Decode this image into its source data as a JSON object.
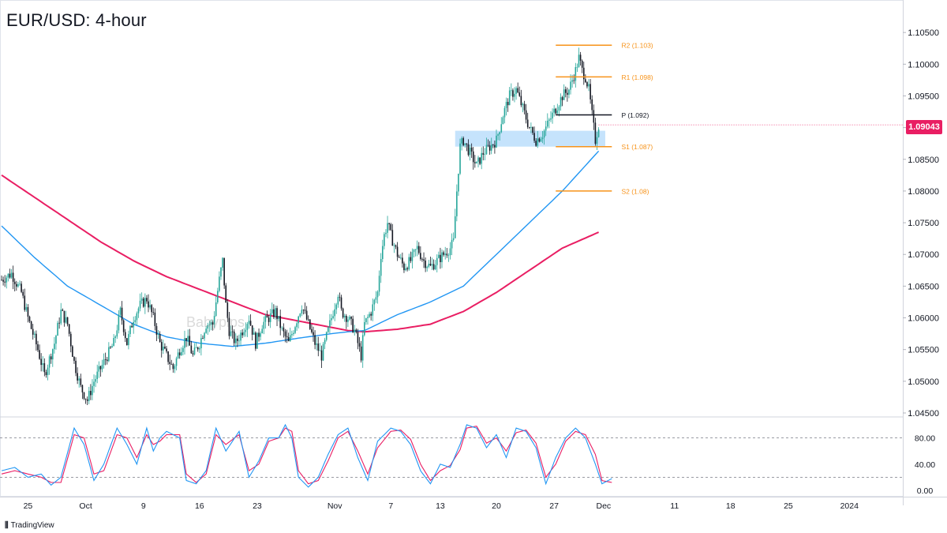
{
  "chart_data": [
    {
      "type": "candlestick",
      "title": "EUR/USD: 4-hour",
      "watermark": "Babypips",
      "y_ticks": [
        1.045,
        1.05,
        1.055,
        1.06,
        1.065,
        1.07,
        1.075,
        1.08,
        1.085,
        1.09,
        1.095,
        1.1,
        1.105
      ],
      "y_tick_labels": [
        "1.04500",
        "1.05000",
        "1.05500",
        "1.06000",
        "1.06500",
        "1.07000",
        "1.07500",
        "1.08000",
        "1.08500",
        "1.09000",
        "1.09500",
        "1.10000",
        "1.10500"
      ],
      "ylim": [
        1.0445,
        1.1095
      ],
      "x_tick_labels": [
        "25",
        "Oct",
        "9",
        "16",
        "23",
        "Nov",
        "7",
        "13",
        "20",
        "27",
        "Dec",
        "11",
        "18",
        "25",
        "2024"
      ],
      "bars": 180,
      "current_price": 1.09043,
      "current_price_label": "1.09043",
      "close_path": [
        [
          0,
          1.066
        ],
        [
          6,
          1.067
        ],
        [
          12,
          1.064
        ],
        [
          16,
          1.06
        ],
        [
          22,
          1.055
        ],
        [
          26,
          1.051
        ],
        [
          32,
          1.056
        ],
        [
          36,
          1.061
        ],
        [
          40,
          1.059
        ],
        [
          44,
          1.053
        ],
        [
          48,
          1.049
        ],
        [
          52,
          1.047
        ],
        [
          56,
          1.05
        ],
        [
          60,
          1.052
        ],
        [
          64,
          1.054
        ],
        [
          68,
          1.056
        ],
        [
          72,
          1.061
        ],
        [
          76,
          1.056
        ],
        [
          80,
          1.06
        ],
        [
          84,
          1.062
        ],
        [
          88,
          1.063
        ],
        [
          92,
          1.06
        ],
        [
          96,
          1.056
        ],
        [
          100,
          1.054
        ],
        [
          104,
          1.052
        ],
        [
          108,
          1.055
        ],
        [
          112,
          1.057
        ],
        [
          116,
          1.054
        ],
        [
          120,
          1.056
        ],
        [
          124,
          1.059
        ],
        [
          128,
          1.059
        ],
        [
          132,
          1.066
        ],
        [
          134,
          1.069
        ],
        [
          136,
          1.062
        ],
        [
          138,
          1.058
        ],
        [
          142,
          1.056
        ],
        [
          146,
          1.058
        ],
        [
          150,
          1.06
        ],
        [
          154,
          1.056
        ],
        [
          158,
          1.059
        ],
        [
          162,
          1.06
        ],
        [
          166,
          1.061
        ],
        [
          170,
          1.058
        ],
        [
          174,
          1.056
        ],
        [
          178,
          1.059
        ],
        [
          182,
          1.062
        ],
        [
          186,
          1.059
        ],
        [
          190,
          1.056
        ],
        [
          194,
          1.054
        ],
        [
          198,
          1.058
        ],
        [
          202,
          1.062
        ],
        [
          204,
          1.064
        ],
        [
          206,
          1.061
        ],
        [
          210,
          1.06
        ],
        [
          214,
          1.058
        ],
        [
          216,
          1.056
        ],
        [
          218,
          1.054
        ],
        [
          220,
          1.059
        ],
        [
          224,
          1.061
        ],
        [
          228,
          1.064
        ],
        [
          230,
          1.07
        ],
        [
          232,
          1.073
        ],
        [
          234,
          1.075
        ],
        [
          236,
          1.073
        ],
        [
          240,
          1.07
        ],
        [
          244,
          1.068
        ],
        [
          248,
          1.069
        ],
        [
          252,
          1.071
        ],
        [
          256,
          1.069
        ],
        [
          260,
          1.068
        ],
        [
          264,
          1.069
        ],
        [
          268,
          1.07
        ],
        [
          272,
          1.071
        ],
        [
          274,
          1.072
        ],
        [
          276,
          1.08
        ],
        [
          278,
          1.087
        ],
        [
          280,
          1.088
        ],
        [
          284,
          1.086
        ],
        [
          288,
          1.084
        ],
        [
          292,
          1.086
        ],
        [
          296,
          1.087
        ],
        [
          300,
          1.088
        ],
        [
          304,
          1.092
        ],
        [
          308,
          1.095
        ],
        [
          312,
          1.096
        ],
        [
          316,
          1.093
        ],
        [
          320,
          1.09
        ],
        [
          324,
          1.088
        ],
        [
          328,
          1.089
        ],
        [
          332,
          1.091
        ],
        [
          336,
          1.093
        ],
        [
          340,
          1.095
        ],
        [
          344,
          1.096
        ],
        [
          348,
          1.099
        ],
        [
          350,
          1.101
        ],
        [
          352,
          1.099
        ],
        [
          354,
          1.098
        ],
        [
          356,
          1.096
        ],
        [
          358,
          1.092
        ],
        [
          360,
          1.088
        ],
        [
          362,
          1.0904
        ]
      ],
      "ma_blue": [
        [
          0,
          1.0745
        ],
        [
          20,
          1.0695
        ],
        [
          40,
          1.065
        ],
        [
          60,
          1.062
        ],
        [
          80,
          1.059
        ],
        [
          100,
          1.057
        ],
        [
          120,
          1.056
        ],
        [
          140,
          1.0555
        ],
        [
          160,
          1.056
        ],
        [
          180,
          1.0568
        ],
        [
          200,
          1.0575
        ],
        [
          210,
          1.0578
        ],
        [
          220,
          1.058
        ],
        [
          240,
          1.0605
        ],
        [
          260,
          1.0625
        ],
        [
          280,
          1.065
        ],
        [
          300,
          1.07
        ],
        [
          320,
          1.075
        ],
        [
          340,
          1.08
        ],
        [
          362,
          1.0863
        ]
      ],
      "ma_pink": [
        [
          0,
          1.0825
        ],
        [
          20,
          1.079
        ],
        [
          40,
          1.0755
        ],
        [
          60,
          1.072
        ],
        [
          80,
          1.069
        ],
        [
          100,
          1.0665
        ],
        [
          120,
          1.0645
        ],
        [
          140,
          1.0625
        ],
        [
          160,
          1.0605
        ],
        [
          180,
          1.0595
        ],
        [
          200,
          1.0585
        ],
        [
          210,
          1.058
        ],
        [
          220,
          1.0578
        ],
        [
          240,
          1.0582
        ],
        [
          260,
          1.059
        ],
        [
          280,
          1.061
        ],
        [
          300,
          1.064
        ],
        [
          320,
          1.0675
        ],
        [
          340,
          1.071
        ],
        [
          362,
          1.0735
        ]
      ],
      "support_zone": {
        "from": 1.087,
        "to": 1.0895
      },
      "pivot_levels": [
        {
          "label": "R2 (1.103)",
          "value": 1.103,
          "color": "#f7931a"
        },
        {
          "label": "R1 (1.098)",
          "value": 1.098,
          "color": "#f7931a"
        },
        {
          "label": "P (1.092)",
          "value": 1.092,
          "color": "#131722"
        },
        {
          "label": "S1 (1.087)",
          "value": 1.087,
          "color": "#f7931a"
        },
        {
          "label": "S2 (1.08)",
          "value": 1.08,
          "color": "#f7931a"
        }
      ],
      "colors": {
        "up": "#26a69a",
        "down": "#131722",
        "ma_blue": "#2196f3",
        "ma_pink": "#e91e63",
        "zone": "#bbdefb",
        "badge": "#e91e63"
      }
    },
    {
      "type": "line",
      "name": "stochastic",
      "ylim": [
        0,
        100
      ],
      "y_ticks": [
        0,
        40,
        80
      ],
      "y_tick_labels": [
        "0.00",
        "40.00",
        "80.00"
      ],
      "reference_lines": [
        80,
        20
      ],
      "k_line": [
        [
          0,
          30
        ],
        [
          8,
          35
        ],
        [
          16,
          20
        ],
        [
          24,
          25
        ],
        [
          30,
          8
        ],
        [
          36,
          20
        ],
        [
          44,
          95
        ],
        [
          50,
          70
        ],
        [
          56,
          15
        ],
        [
          62,
          40
        ],
        [
          70,
          95
        ],
        [
          76,
          70
        ],
        [
          82,
          40
        ],
        [
          88,
          95
        ],
        [
          92,
          60
        ],
        [
          96,
          80
        ],
        [
          100,
          90
        ],
        [
          108,
          80
        ],
        [
          112,
          15
        ],
        [
          118,
          10
        ],
        [
          124,
          30
        ],
        [
          130,
          95
        ],
        [
          136,
          60
        ],
        [
          144,
          90
        ],
        [
          150,
          20
        ],
        [
          156,
          45
        ],
        [
          162,
          80
        ],
        [
          168,
          80
        ],
        [
          172,
          100
        ],
        [
          176,
          80
        ],
        [
          180,
          20
        ],
        [
          186,
          5
        ],
        [
          192,
          20
        ],
        [
          198,
          55
        ],
        [
          204,
          85
        ],
        [
          210,
          95
        ],
        [
          216,
          50
        ],
        [
          222,
          15
        ],
        [
          228,
          75
        ],
        [
          236,
          95
        ],
        [
          242,
          90
        ],
        [
          248,
          70
        ],
        [
          254,
          30
        ],
        [
          260,
          10
        ],
        [
          266,
          40
        ],
        [
          272,
          35
        ],
        [
          278,
          70
        ],
        [
          282,
          100
        ],
        [
          288,
          95
        ],
        [
          294,
          65
        ],
        [
          300,
          85
        ],
        [
          306,
          50
        ],
        [
          312,
          95
        ],
        [
          318,
          90
        ],
        [
          324,
          65
        ],
        [
          330,
          10
        ],
        [
          336,
          50
        ],
        [
          342,
          80
        ],
        [
          348,
          95
        ],
        [
          354,
          80
        ],
        [
          360,
          40
        ],
        [
          364,
          10
        ],
        [
          370,
          18
        ]
      ],
      "d_line": [
        [
          0,
          25
        ],
        [
          8,
          30
        ],
        [
          16,
          25
        ],
        [
          24,
          20
        ],
        [
          30,
          12
        ],
        [
          36,
          12
        ],
        [
          44,
          85
        ],
        [
          50,
          80
        ],
        [
          56,
          25
        ],
        [
          62,
          30
        ],
        [
          70,
          85
        ],
        [
          76,
          80
        ],
        [
          82,
          50
        ],
        [
          88,
          85
        ],
        [
          92,
          70
        ],
        [
          96,
          75
        ],
        [
          100,
          85
        ],
        [
          108,
          85
        ],
        [
          112,
          25
        ],
        [
          118,
          12
        ],
        [
          124,
          25
        ],
        [
          130,
          85
        ],
        [
          136,
          70
        ],
        [
          144,
          85
        ],
        [
          150,
          30
        ],
        [
          156,
          40
        ],
        [
          162,
          75
        ],
        [
          168,
          80
        ],
        [
          172,
          95
        ],
        [
          176,
          90
        ],
        [
          180,
          30
        ],
        [
          186,
          10
        ],
        [
          192,
          15
        ],
        [
          198,
          45
        ],
        [
          204,
          80
        ],
        [
          210,
          90
        ],
        [
          216,
          60
        ],
        [
          222,
          25
        ],
        [
          228,
          65
        ],
        [
          236,
          90
        ],
        [
          242,
          92
        ],
        [
          248,
          78
        ],
        [
          254,
          40
        ],
        [
          260,
          15
        ],
        [
          266,
          30
        ],
        [
          272,
          38
        ],
        [
          278,
          62
        ],
        [
          282,
          95
        ],
        [
          288,
          98
        ],
        [
          294,
          72
        ],
        [
          300,
          80
        ],
        [
          306,
          60
        ],
        [
          312,
          88
        ],
        [
          318,
          92
        ],
        [
          324,
          72
        ],
        [
          330,
          20
        ],
        [
          336,
          40
        ],
        [
          342,
          75
        ],
        [
          348,
          90
        ],
        [
          354,
          85
        ],
        [
          360,
          55
        ],
        [
          364,
          15
        ],
        [
          370,
          12
        ]
      ],
      "colors": {
        "k": "#2196f3",
        "d": "#e91e63"
      }
    }
  ],
  "branding": "TradingView"
}
